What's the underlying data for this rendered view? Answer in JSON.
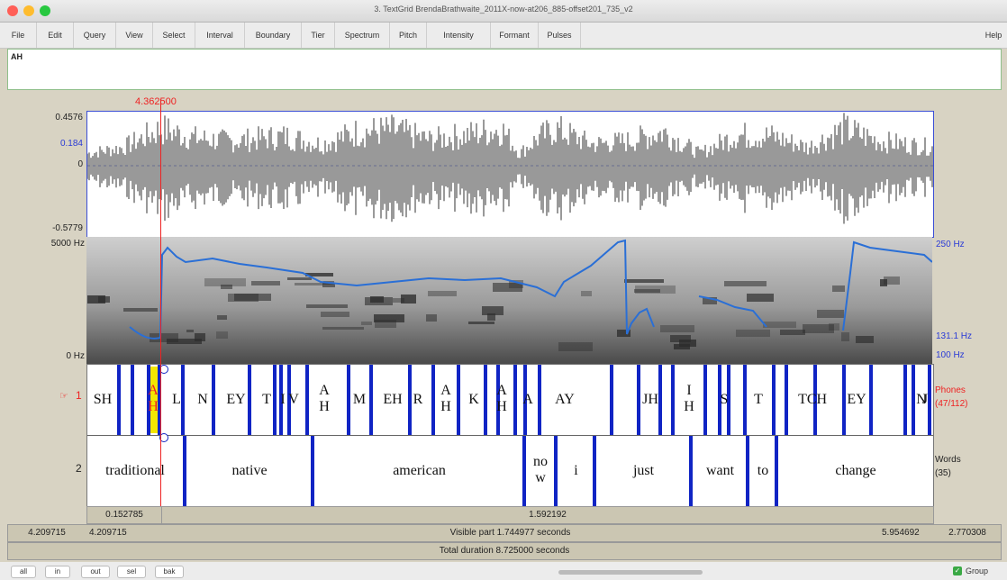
{
  "window": {
    "title": "3. TextGrid BrendaBrathwaite_2011X-now-at206_885-offset201_735_v2"
  },
  "menu": [
    "File",
    "Edit",
    "Query",
    "View",
    "Select",
    "Interval",
    "Boundary",
    "Tier",
    "Spectrum",
    "Pitch",
    "Intensity",
    "Formant",
    "Pulses",
    "Help"
  ],
  "textbox": {
    "value": "AH"
  },
  "cursor": {
    "time": "4.362500"
  },
  "waveform": {
    "max": "0.4576",
    "marker": "0.184",
    "zero": "0",
    "min": "-0.5779"
  },
  "spectrogram": {
    "top": "5000 Hz",
    "bottom": "0 Hz",
    "pitch_top": "250 Hz",
    "pitch_mark": "131.1 Hz",
    "pitch_bottom": "100 Hz"
  },
  "tier1": {
    "number": "1",
    "name": "Phones",
    "count": "(47/112)",
    "labels": [
      "SH",
      "A H",
      "L",
      "N",
      "EY",
      "T",
      "I",
      "V",
      "A H",
      "M",
      "EH",
      "R",
      "A H",
      "K",
      "A H",
      "A",
      "AY",
      "JH",
      "I H",
      "S",
      "T",
      "T",
      "CH",
      "EY",
      "N",
      "J"
    ]
  },
  "tier2": {
    "number": "2",
    "name": "Words",
    "count": "(35)",
    "labels": [
      "traditional",
      "native",
      "american",
      "no w",
      "i",
      "just",
      "want",
      "to",
      "change"
    ]
  },
  "selection": {
    "left_duration": "0.152785",
    "right_duration": "1.592192"
  },
  "visible": {
    "start": "4.209715",
    "start_blue": "4.209715",
    "label": "Visible part 1.744977 seconds",
    "end_blue": "5.954692",
    "remaining": "2.770308"
  },
  "total": {
    "label": "Total duration 8.725000 seconds"
  },
  "buttons": [
    "all",
    "in",
    "out",
    "sel",
    "bak"
  ],
  "group": {
    "label": "Group"
  }
}
